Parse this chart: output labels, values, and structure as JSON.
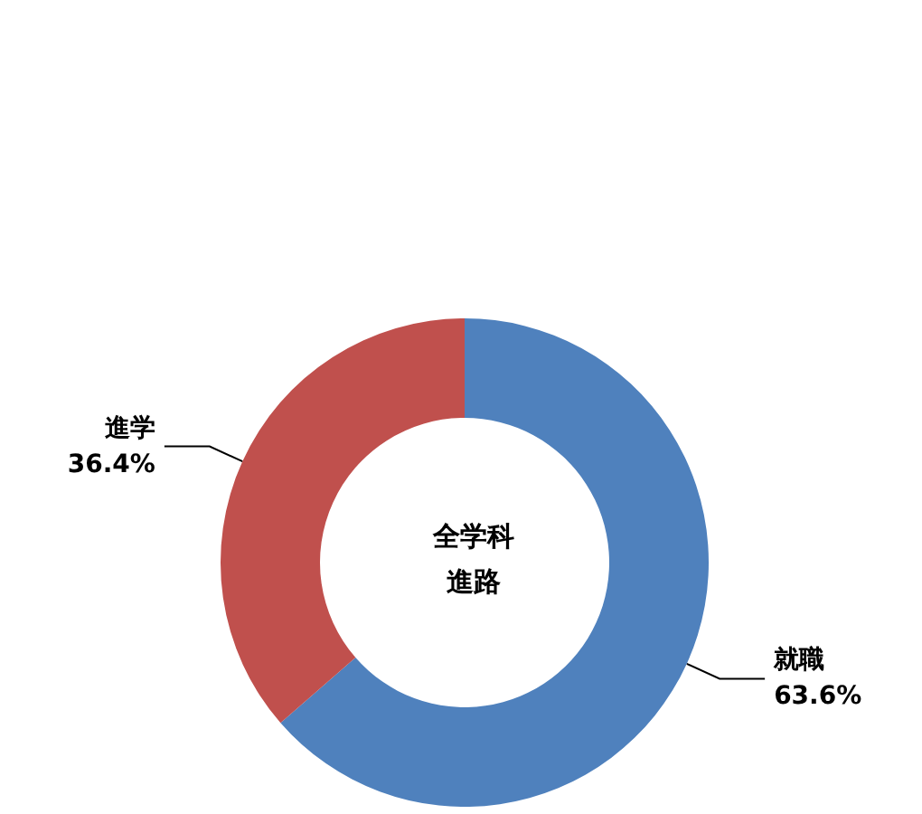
{
  "chart_data": {
    "type": "donut",
    "title": "全学科",
    "subtitle": "進路",
    "categories": [
      "就職",
      "進学"
    ],
    "values": [
      63.6,
      36.4
    ],
    "value_labels": [
      "63.6%",
      "36.4%"
    ],
    "colors": [
      "#4f81bd",
      "#c0504d"
    ],
    "legend": false
  }
}
